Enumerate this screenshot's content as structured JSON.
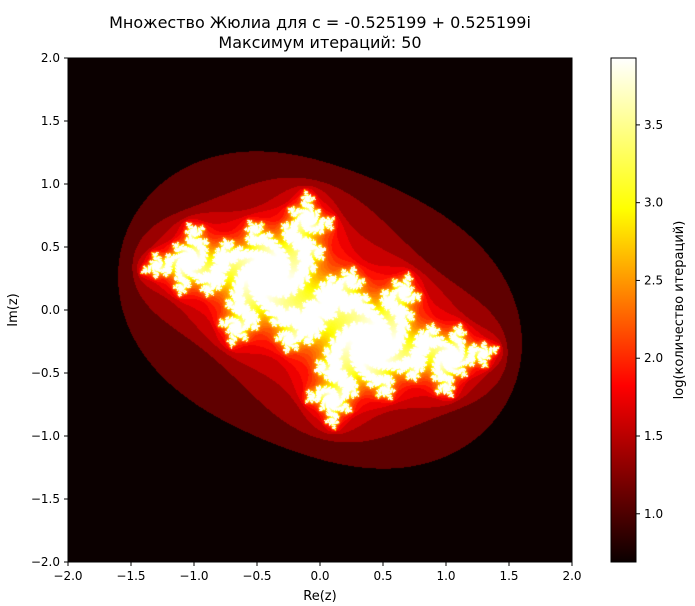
{
  "chart_data": {
    "type": "heatmap",
    "title_line1": "Множество Жюлиа для c = -0.525199 + 0.525199i",
    "title_line2": "Максимум итераций: 50",
    "xlabel": "Re(z)",
    "ylabel": "Im(z)",
    "xlim": [
      -2.0,
      2.0
    ],
    "ylim": [
      -2.0,
      2.0
    ],
    "x_ticks": [
      "−2.0",
      "−1.5",
      "−1.0",
      "−0.5",
      "0.0",
      "0.5",
      "1.0",
      "1.5",
      "2.0"
    ],
    "y_ticks": [
      "2.0",
      "1.5",
      "1.0",
      "0.5",
      "0.0",
      "−0.5",
      "−1.0",
      "−1.5",
      "−2.0"
    ],
    "c_re": -0.525199,
    "c_im": 0.525199,
    "max_iter": 50,
    "colormap": "hot",
    "colorbar": {
      "label": "log(количество итераций)",
      "min": 0.69,
      "max": 3.93,
      "ticks": [
        "1.0",
        "1.5",
        "2.0",
        "2.5",
        "3.0",
        "3.5"
      ],
      "tick_values": [
        1.0,
        1.5,
        2.0,
        2.5,
        3.0,
        3.5
      ]
    },
    "grid": false
  }
}
